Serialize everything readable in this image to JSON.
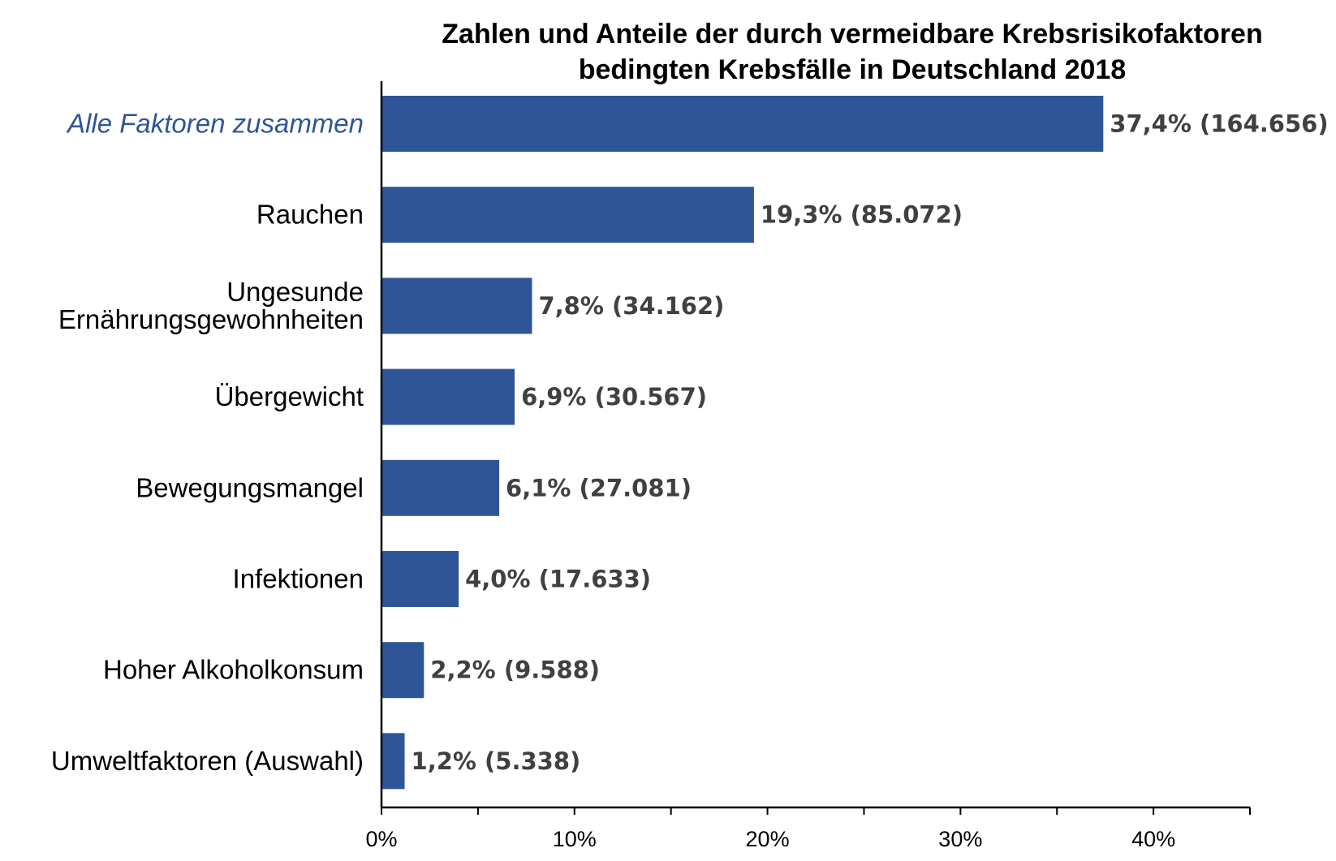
{
  "chart_data": {
    "type": "bar",
    "orientation": "horizontal",
    "title": [
      "Zahlen und Anteile der durch vermeidbare Krebsrisikofaktoren",
      "bedingten Krebsfälle in Deutschland 2018"
    ],
    "categories": [
      [
        "Alle Faktoren zusammen"
      ],
      [
        "Rauchen"
      ],
      [
        "Ungesunde",
        "Ernährungsgewohnheiten"
      ],
      [
        "Übergewicht"
      ],
      [
        "Bewegungsmangel"
      ],
      [
        "Infektionen"
      ],
      [
        "Hoher Alkoholkonsum"
      ],
      [
        "Umweltfaktoren (Auswahl)"
      ]
    ],
    "highlighted_category_index": 0,
    "values": [
      37.4,
      19.3,
      7.8,
      6.9,
      6.1,
      4.0,
      2.2,
      1.2
    ],
    "counts": [
      164656,
      85072,
      34162,
      30567,
      27081,
      17633,
      9588,
      5338
    ],
    "data_labels": [
      "37,4% (164.656)",
      "19,3% (85.072)",
      "7,8% (34.162)",
      "6,9% (30.567)",
      "6,1% (27.081)",
      "4,0% (17.633)",
      "2,2% (9.588)",
      "1,2% (5.338)"
    ],
    "xlim": [
      0,
      45
    ],
    "x_ticks": [
      0,
      10,
      20,
      30,
      40
    ],
    "x_tick_labels": [
      "0%",
      "10%",
      "20%",
      "30%",
      "40%"
    ],
    "x_minor_ticks": [
      5,
      15,
      25,
      35,
      45
    ],
    "xlabel": "",
    "ylabel": "",
    "grid": false,
    "legend": "none",
    "colors": {
      "bar": "#2E5597",
      "highlight_label": "#2E5597",
      "data_label": "#404040",
      "axis": "#000000"
    }
  }
}
